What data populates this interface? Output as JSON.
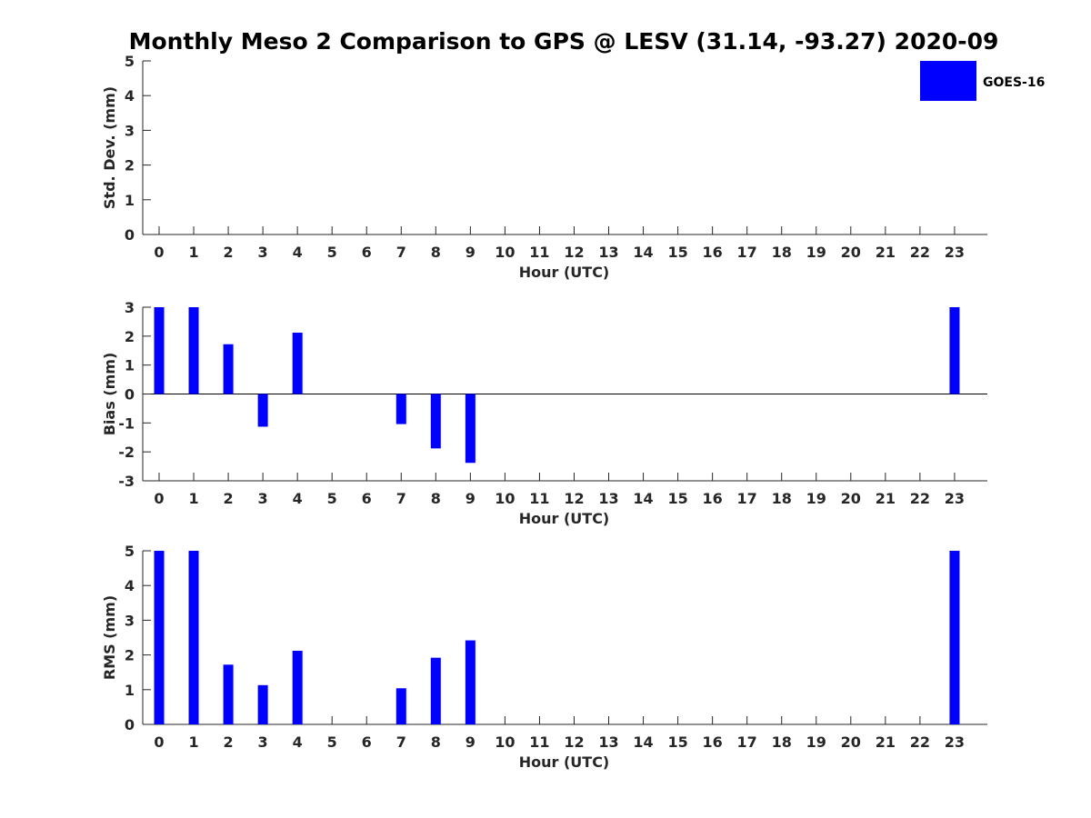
{
  "title": "Monthly Meso 2 Comparison to GPS @ LESV (31.14, -93.27) 2020-09",
  "legend": {
    "label": "GOES-16",
    "color": "#0000ff",
    "placement": "top-right"
  },
  "colors": {
    "bar": "#0000ff",
    "axis": "#262626"
  },
  "chart_data": [
    {
      "type": "bar",
      "ylabel": "Std. Dev. (mm)",
      "xlabel": "Hour (UTC)",
      "ylim": [
        0,
        5
      ],
      "yticks": [
        0,
        1,
        2,
        3,
        4,
        5
      ],
      "categories": [
        "0",
        "1",
        "2",
        "3",
        "4",
        "5",
        "6",
        "7",
        "8",
        "9",
        "10",
        "11",
        "12",
        "13",
        "14",
        "15",
        "16",
        "17",
        "18",
        "19",
        "20",
        "21",
        "22",
        "23"
      ],
      "series": [
        {
          "name": "GOES-16",
          "values": [
            null,
            null,
            null,
            null,
            null,
            null,
            null,
            null,
            null,
            null,
            null,
            null,
            null,
            null,
            null,
            null,
            null,
            null,
            null,
            null,
            null,
            null,
            null,
            null
          ]
        }
      ],
      "zero_line": false
    },
    {
      "type": "bar",
      "ylabel": "Bias (mm)",
      "xlabel": "Hour (UTC)",
      "ylim": [
        -3,
        3
      ],
      "yticks": [
        -3,
        -2,
        -1,
        0,
        1,
        2,
        3
      ],
      "categories": [
        "0",
        "1",
        "2",
        "3",
        "4",
        "5",
        "6",
        "7",
        "8",
        "9",
        "10",
        "11",
        "12",
        "13",
        "14",
        "15",
        "16",
        "17",
        "18",
        "19",
        "20",
        "21",
        "22",
        "23"
      ],
      "series": [
        {
          "name": "GOES-16",
          "values": [
            3,
            3,
            1.72,
            -1.13,
            2.12,
            null,
            null,
            -1.04,
            -1.88,
            -2.38,
            null,
            null,
            null,
            null,
            null,
            null,
            null,
            null,
            null,
            null,
            null,
            null,
            null,
            3
          ]
        }
      ],
      "zero_line": true
    },
    {
      "type": "bar",
      "ylabel": "RMS (mm)",
      "xlabel": "Hour (UTC)",
      "ylim": [
        0,
        5
      ],
      "yticks": [
        0,
        1,
        2,
        3,
        4,
        5
      ],
      "categories": [
        "0",
        "1",
        "2",
        "3",
        "4",
        "5",
        "6",
        "7",
        "8",
        "9",
        "10",
        "11",
        "12",
        "13",
        "14",
        "15",
        "16",
        "17",
        "18",
        "19",
        "20",
        "21",
        "22",
        "23"
      ],
      "series": [
        {
          "name": "GOES-16",
          "values": [
            5,
            5,
            1.72,
            1.13,
            2.12,
            null,
            null,
            1.04,
            1.92,
            2.42,
            null,
            null,
            null,
            null,
            null,
            null,
            null,
            null,
            null,
            null,
            null,
            null,
            null,
            5
          ]
        }
      ],
      "zero_line": false
    }
  ]
}
